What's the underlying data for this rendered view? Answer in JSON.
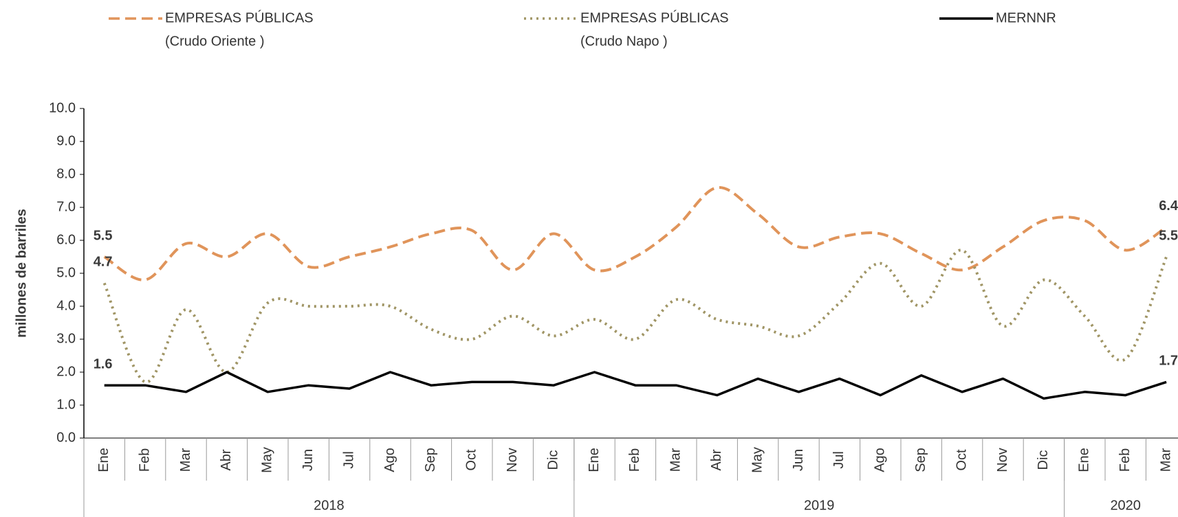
{
  "chart_data": {
    "type": "line",
    "y_label": "millones de barriles",
    "categories": [
      "Ene",
      "Feb",
      "Mar",
      "Abr",
      "May",
      "Jun",
      "Jul",
      "Ago",
      "Sep",
      "Oct",
      "Nov",
      "Dic",
      "Ene",
      "Feb",
      "Mar",
      "Abr",
      "May",
      "Jun",
      "Jul",
      "Ago",
      "Sep",
      "Oct",
      "Nov",
      "Dic",
      "Ene",
      "Feb",
      "Mar"
    ],
    "groups": [
      {
        "label": "2018",
        "span": 12
      },
      {
        "label": "2019",
        "span": 12
      },
      {
        "label": "2020",
        "span": 3
      }
    ],
    "series": [
      {
        "name": [
          "EMPRESAS PÚBLICAS",
          "(Crudo Oriente )"
        ],
        "color": "#e0945a",
        "dash": "dashed",
        "smooth": true,
        "values": [
          5.5,
          4.8,
          5.9,
          5.5,
          6.2,
          5.2,
          5.5,
          5.8,
          6.2,
          6.3,
          5.1,
          6.2,
          5.1,
          5.5,
          6.4,
          7.6,
          6.8,
          5.8,
          6.1,
          6.2,
          5.6,
          5.1,
          5.8,
          6.6,
          6.6,
          5.7,
          6.4
        ],
        "value_labels": [
          "5.5",
          null,
          null,
          null,
          null,
          null,
          null,
          null,
          null,
          null,
          null,
          null,
          null,
          null,
          null,
          null,
          null,
          null,
          null,
          null,
          null,
          null,
          null,
          null,
          null,
          null,
          "6.4"
        ]
      },
      {
        "name": [
          "EMPRESAS PÚBLICAS",
          "(Crudo Napo )"
        ],
        "color": "#a09565",
        "dash": "dotted",
        "smooth": true,
        "values": [
          4.7,
          1.7,
          3.9,
          2.0,
          4.1,
          4.0,
          4.0,
          4.0,
          3.3,
          3.0,
          3.7,
          3.1,
          3.6,
          3.0,
          4.2,
          3.6,
          3.4,
          3.1,
          4.1,
          5.3,
          4.0,
          5.7,
          3.4,
          4.8,
          3.7,
          2.4,
          5.5
        ],
        "value_labels": [
          "4.7",
          null,
          null,
          null,
          null,
          null,
          null,
          null,
          null,
          null,
          null,
          null,
          null,
          null,
          null,
          null,
          null,
          null,
          null,
          null,
          null,
          null,
          null,
          null,
          null,
          null,
          "5.5"
        ]
      },
      {
        "name": [
          "MERNNR"
        ],
        "color": "#000000",
        "dash": "solid",
        "smooth": false,
        "values": [
          1.6,
          1.6,
          1.4,
          2.0,
          1.4,
          1.6,
          1.5,
          2.0,
          1.6,
          1.7,
          1.7,
          1.6,
          2.0,
          1.6,
          1.6,
          1.3,
          1.8,
          1.4,
          1.8,
          1.3,
          1.9,
          1.4,
          1.8,
          1.2,
          1.4,
          1.3,
          1.7
        ],
        "value_labels": [
          "1.6",
          null,
          null,
          null,
          null,
          null,
          null,
          null,
          null,
          null,
          null,
          null,
          null,
          null,
          null,
          null,
          null,
          null,
          null,
          null,
          null,
          null,
          null,
          null,
          null,
          null,
          "1.7"
        ]
      }
    ],
    "ylim": [
      0,
      10
    ],
    "yticks": [
      {
        "value": 0,
        "label": "0.0"
      },
      {
        "value": 1,
        "label": "1.0"
      },
      {
        "value": 2,
        "label": "2.0"
      },
      {
        "value": 3,
        "label": "3.0"
      },
      {
        "value": 4,
        "label": "4.0"
      },
      {
        "value": 5,
        "label": "5.0"
      },
      {
        "value": 6,
        "label": "6.0"
      },
      {
        "value": 7,
        "label": "7.0"
      },
      {
        "value": 8,
        "label": "8.0"
      },
      {
        "value": 9,
        "label": "9.0"
      },
      {
        "value": 10,
        "label": "10.0"
      }
    ],
    "grid": false
  }
}
